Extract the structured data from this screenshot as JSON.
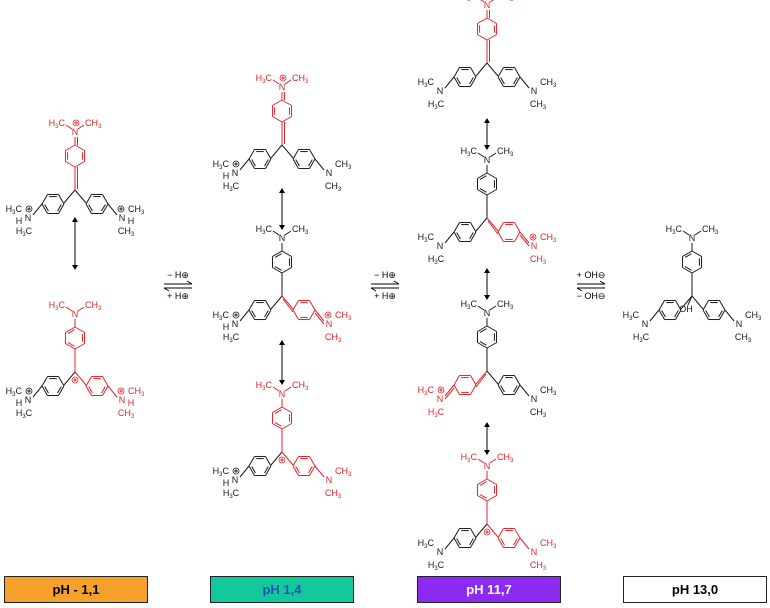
{
  "columns": [
    {
      "label": "pH - 1,1",
      "label_color": "#000000",
      "box_color": "#F7A12D",
      "structures": [
        {
          "top": "N",
          "top_plus": true,
          "left_sub": "NH",
          "left_plus": true,
          "right_sub": "NH",
          "right_plus": true,
          "central": "=",
          "quinoid": "top"
        },
        {
          "top": "N",
          "top_plus": false,
          "left_sub": "NH",
          "left_plus": true,
          "right_sub": "NH",
          "right_plus": true,
          "central": "+",
          "quinoid": "none"
        }
      ]
    },
    {
      "label": "pH 1,4",
      "label_color": "#1f4fbf",
      "box_color": "#14C89E",
      "structures": [
        {
          "top": "N",
          "top_plus": true,
          "left_sub": "NH",
          "left_plus": true,
          "right_sub": "N",
          "right_plus": false,
          "central": "=",
          "quinoid": "top"
        },
        {
          "top": "N",
          "top_plus": false,
          "left_sub": "NH",
          "left_plus": true,
          "right_sub": "N",
          "right_plus": true,
          "central": "=",
          "quinoid": "right"
        },
        {
          "top": "N",
          "top_plus": false,
          "left_sub": "NH",
          "left_plus": true,
          "right_sub": "N",
          "right_plus": false,
          "central": "+",
          "quinoid": "none"
        }
      ]
    },
    {
      "label": "pH 11,7",
      "label_color": "#ffffff",
      "box_color": "#8B2BF2",
      "structures": [
        {
          "top": "N",
          "top_plus": true,
          "left_sub": "N",
          "left_plus": false,
          "right_sub": "N",
          "right_plus": false,
          "central": "=",
          "quinoid": "top"
        },
        {
          "top": "N",
          "top_plus": false,
          "left_sub": "N",
          "left_plus": false,
          "right_sub": "N",
          "right_plus": true,
          "central": "=",
          "quinoid": "right"
        },
        {
          "top": "N",
          "top_plus": false,
          "left_sub": "N",
          "left_plus": true,
          "right_sub": "N",
          "right_plus": false,
          "central": "=",
          "quinoid": "left"
        },
        {
          "top": "N",
          "top_plus": false,
          "left_sub": "N",
          "left_plus": false,
          "right_sub": "N",
          "right_plus": false,
          "central": "+",
          "quinoid": "none"
        }
      ]
    },
    {
      "label": "pH 13,0",
      "label_color": "#000000",
      "box_color": "#ffffff",
      "structures": [
        {
          "top": "N",
          "top_plus": false,
          "left_sub": "N",
          "left_plus": false,
          "right_sub": "N",
          "right_plus": false,
          "central": "OH",
          "quinoid": "none"
        }
      ]
    }
  ],
  "equilibria": [
    {
      "upper": "− H⊕",
      "lower": "+ H⊕"
    },
    {
      "upper": "− H⊕",
      "lower": "+ H⊕"
    },
    {
      "upper": "+ OH⊖",
      "lower": "− OH⊖"
    }
  ],
  "text": {
    "methyl": "CH3",
    "methyl_left": "H3C",
    "hydroxyl": "OH",
    "charge_plus": "⊕",
    "H": "H",
    "N": "N"
  },
  "colors": {
    "conjugated": "#E0252B",
    "skeleton": "#1a1a1a",
    "arrows": "#000000"
  }
}
